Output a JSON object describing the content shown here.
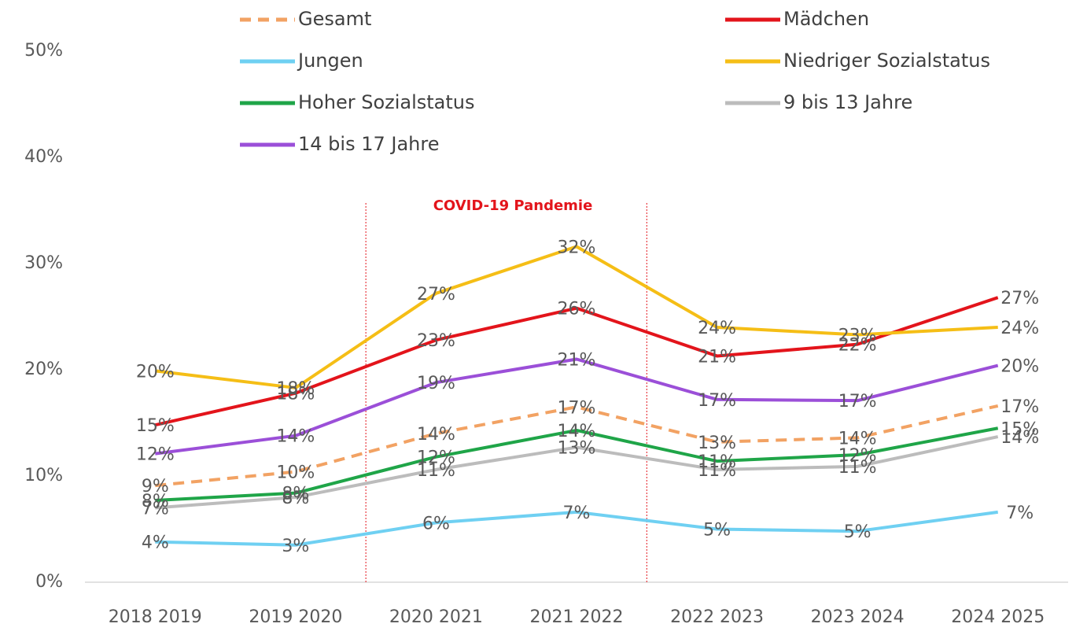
{
  "chart_data": {
    "type": "line",
    "categories": [
      "2018 2019",
      "2019 2020",
      "2020 2021",
      "2021 2022",
      "2022 2023",
      "2023 2024",
      "2024 2025"
    ],
    "annotation": "COVID-19 Pandemie",
    "ylim": [
      0,
      50
    ],
    "yticks": [
      {
        "value": 0,
        "label": "0%"
      },
      {
        "value": 10,
        "label": "10%"
      },
      {
        "value": 20,
        "label": "20%"
      },
      {
        "value": 30,
        "label": "30%"
      },
      {
        "value": 40,
        "label": "40%"
      },
      {
        "value": 50,
        "label": "50%"
      }
    ],
    "grid": false,
    "series": [
      {
        "name": "Gesamt",
        "color": "#f2a263",
        "dashed": true,
        "values": [
          9.1,
          10.4,
          14.0,
          16.5,
          13.2,
          13.6,
          16.6
        ],
        "value_labels": [
          "9%",
          "10%",
          "14%",
          "17%",
          "13%",
          "14%",
          "17%"
        ]
      },
      {
        "name": "Mädchen",
        "color": "#e3141b",
        "values": [
          14.8,
          17.8,
          22.8,
          25.8,
          21.3,
          22.4,
          26.8
        ],
        "value_labels": [
          "15%",
          "18%",
          "23%",
          "26%",
          "21%",
          "22%",
          "27%"
        ]
      },
      {
        "name": "Jungen",
        "color": "#6fd0f2",
        "values": [
          3.8,
          3.5,
          5.6,
          6.6,
          5.0,
          4.8,
          6.6
        ],
        "value_labels": [
          "4%",
          "3%",
          "6%",
          "7%",
          "5%",
          "5%",
          "7%"
        ]
      },
      {
        "name": "Niedriger Sozialstatus",
        "color": "#f5be16",
        "values": [
          19.9,
          18.3,
          27.2,
          31.6,
          24.0,
          23.3,
          24.0
        ],
        "value_labels": [
          "20%",
          "18%",
          "27%",
          "32%",
          "24%",
          "23%",
          "24%"
        ]
      },
      {
        "name": "Hoher Sozialstatus",
        "color": "#1fa548",
        "values": [
          7.7,
          8.4,
          11.8,
          14.3,
          11.4,
          12.0,
          14.5
        ],
        "value_labels": [
          "8%",
          "8%",
          "12%",
          "14%",
          "11%",
          "12%",
          "15%"
        ]
      },
      {
        "name": "9 bis 13 Jahre",
        "color": "#bcbcbc",
        "values": [
          7.0,
          8.0,
          10.6,
          12.7,
          10.6,
          10.9,
          13.7
        ],
        "value_labels": [
          "7%",
          "8%",
          "11%",
          "13%",
          "11%",
          "11%",
          "14%"
        ]
      },
      {
        "name": "14 bis 17 Jahre",
        "color": "#9b4fd8",
        "values": [
          12.1,
          13.8,
          18.8,
          21.0,
          17.2,
          17.1,
          20.4
        ],
        "value_labels": [
          "12%",
          "14%",
          "19%",
          "21%",
          "17%",
          "17%",
          "20%"
        ]
      }
    ]
  }
}
